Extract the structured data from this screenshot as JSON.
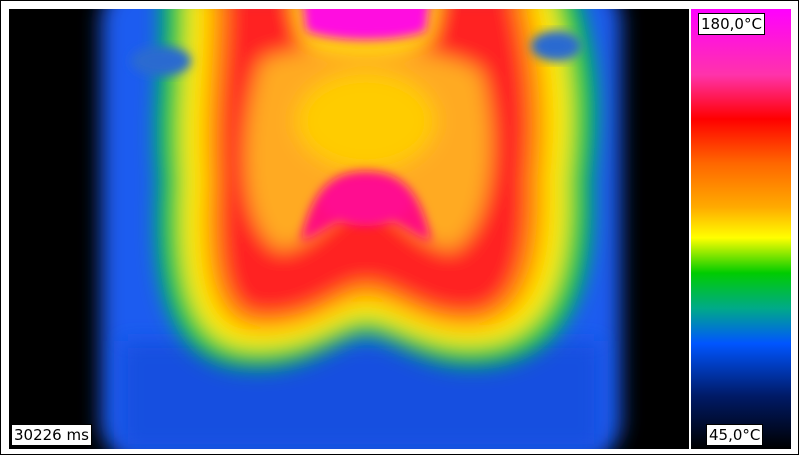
{
  "scale": {
    "max_label": "180,0°C",
    "min_label": "45,0°C"
  },
  "timestamp": "30226 ms"
}
